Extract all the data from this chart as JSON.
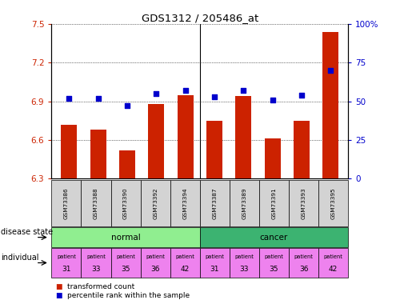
{
  "title": "GDS1312 / 205486_at",
  "samples": [
    "GSM73386",
    "GSM73388",
    "GSM73390",
    "GSM73392",
    "GSM73394",
    "GSM73387",
    "GSM73389",
    "GSM73391",
    "GSM73393",
    "GSM73395"
  ],
  "transformed_count": [
    6.72,
    6.68,
    6.52,
    6.88,
    6.95,
    6.75,
    6.94,
    6.61,
    6.75,
    7.44
  ],
  "percentile_rank": [
    52,
    52,
    47,
    55,
    57,
    53,
    57,
    51,
    54,
    70
  ],
  "ylim_left": [
    6.3,
    7.5
  ],
  "ylim_right": [
    0,
    100
  ],
  "yticks_left": [
    6.3,
    6.6,
    6.9,
    7.2,
    7.5
  ],
  "yticks_right": [
    0,
    25,
    50,
    75,
    100
  ],
  "ytick_labels_right": [
    "0",
    "25",
    "50",
    "75",
    "100%"
  ],
  "disease_state": [
    "normal",
    "normal",
    "normal",
    "normal",
    "normal",
    "cancer",
    "cancer",
    "cancer",
    "cancer",
    "cancer"
  ],
  "individuals": [
    "31",
    "33",
    "35",
    "36",
    "42",
    "31",
    "33",
    "35",
    "36",
    "42"
  ],
  "bar_color": "#CC2200",
  "dot_color": "#0000CC",
  "label_color_left": "#CC2200",
  "label_color_right": "#0000CC",
  "normal_color": "#90EE90",
  "cancer_color": "#3CB371",
  "individual_color": "#EE82EE",
  "sample_bg_color": "#D3D3D3",
  "legend_red": "transformed count",
  "legend_blue": "percentile rank within the sample",
  "disease_label": "disease state",
  "individual_label": "individual"
}
